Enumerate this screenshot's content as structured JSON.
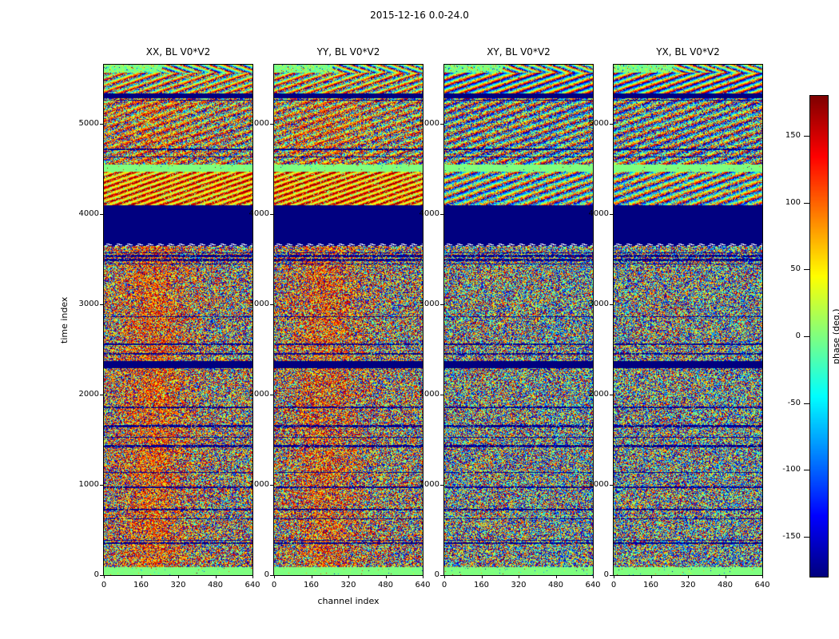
{
  "chart_data": {
    "type": "heatmap",
    "suptitle": "2015-12-16 0.0-24.0",
    "xlabel": "channel index",
    "ylabel": "time index",
    "x_range": [
      0,
      640
    ],
    "y_range": [
      0,
      5650
    ],
    "x_ticks": [
      0,
      160,
      320,
      480,
      640
    ],
    "y_ticks": [
      0,
      1000,
      2000,
      3000,
      4000,
      5000
    ],
    "grid": false,
    "panels": [
      {
        "pol": "XX",
        "title": "XX, BL V0*V2",
        "warm": 0.5
      },
      {
        "pol": "YY",
        "title": "YY, BL V0*V2",
        "warm": 0.46
      },
      {
        "pol": "XY",
        "title": "XY, BL V0*V2",
        "warm": 0.13
      },
      {
        "pol": "YX",
        "title": "YX, BL V0*V2",
        "warm": 0.11
      }
    ],
    "colorbar": {
      "label": "phase (deg.)",
      "colormap": "jet",
      "range": [
        -180,
        180
      ],
      "ticks": [
        150,
        100,
        50,
        0,
        -50,
        -100,
        -150
      ]
    },
    "bands": [
      {
        "t0": 0,
        "t1": 80,
        "type": "green"
      },
      {
        "t0": 80,
        "t1": 2290,
        "type": "noise"
      },
      {
        "t0": 2290,
        "t1": 2370,
        "type": "navy"
      },
      {
        "t0": 2370,
        "t1": 3640,
        "type": "noise"
      },
      {
        "t0": 3640,
        "t1": 3675,
        "type": "dashed"
      },
      {
        "t0": 3675,
        "t1": 4100,
        "type": "navy"
      },
      {
        "t0": 4100,
        "t1": 4470,
        "type": "fringe"
      },
      {
        "t0": 4470,
        "t1": 4550,
        "type": "green"
      },
      {
        "t0": 4550,
        "t1": 5280,
        "type": "noise_fringe"
      },
      {
        "t0": 5280,
        "t1": 5340,
        "type": "navy"
      },
      {
        "t0": 5340,
        "t1": 5570,
        "type": "fringe2"
      },
      {
        "t0": 5570,
        "t1": 5650,
        "type": "top_fringe"
      }
    ],
    "colors": {
      "phase_zero_green": "#7fff7f",
      "flagged_navy": "#00007f",
      "max_dark_red": "#7f0000",
      "background": "#ffffff"
    }
  }
}
